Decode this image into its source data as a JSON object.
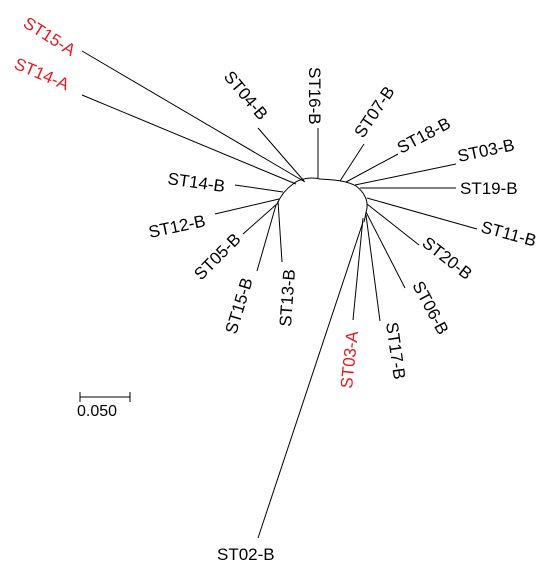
{
  "colors": {
    "default_label": "#000000",
    "highlight_label": "#e8191f",
    "branch": "#000000",
    "background": "#ffffff"
  },
  "leaves": {
    "st15a": {
      "label": "ST15-A",
      "highlight": true
    },
    "st14a": {
      "label": "ST14-A",
      "highlight": true
    },
    "st04b": {
      "label": "ST04-B",
      "highlight": false
    },
    "st16b": {
      "label": "ST16-B",
      "highlight": false
    },
    "st07b": {
      "label": "ST07-B",
      "highlight": false
    },
    "st18b": {
      "label": "ST18-B",
      "highlight": false
    },
    "st03b": {
      "label": "ST03-B",
      "highlight": false
    },
    "st19b": {
      "label": "ST19-B",
      "highlight": false
    },
    "st11b": {
      "label": "ST11-B",
      "highlight": false
    },
    "st20b": {
      "label": "ST20-B",
      "highlight": false
    },
    "st06b": {
      "label": "ST06-B",
      "highlight": false
    },
    "st17b": {
      "label": "ST17-B",
      "highlight": false
    },
    "st03a": {
      "label": "ST03-A",
      "highlight": true
    },
    "st13b": {
      "label": "ST13-B",
      "highlight": false
    },
    "st15b": {
      "label": "ST15-B",
      "highlight": false
    },
    "st05b": {
      "label": "ST05-B",
      "highlight": false
    },
    "st12b": {
      "label": "ST12-B",
      "highlight": false
    },
    "st14b": {
      "label": "ST14-B",
      "highlight": false
    },
    "st02b": {
      "label": "ST02-B",
      "highlight": false
    }
  },
  "scale_bar": {
    "label": "0.050"
  }
}
